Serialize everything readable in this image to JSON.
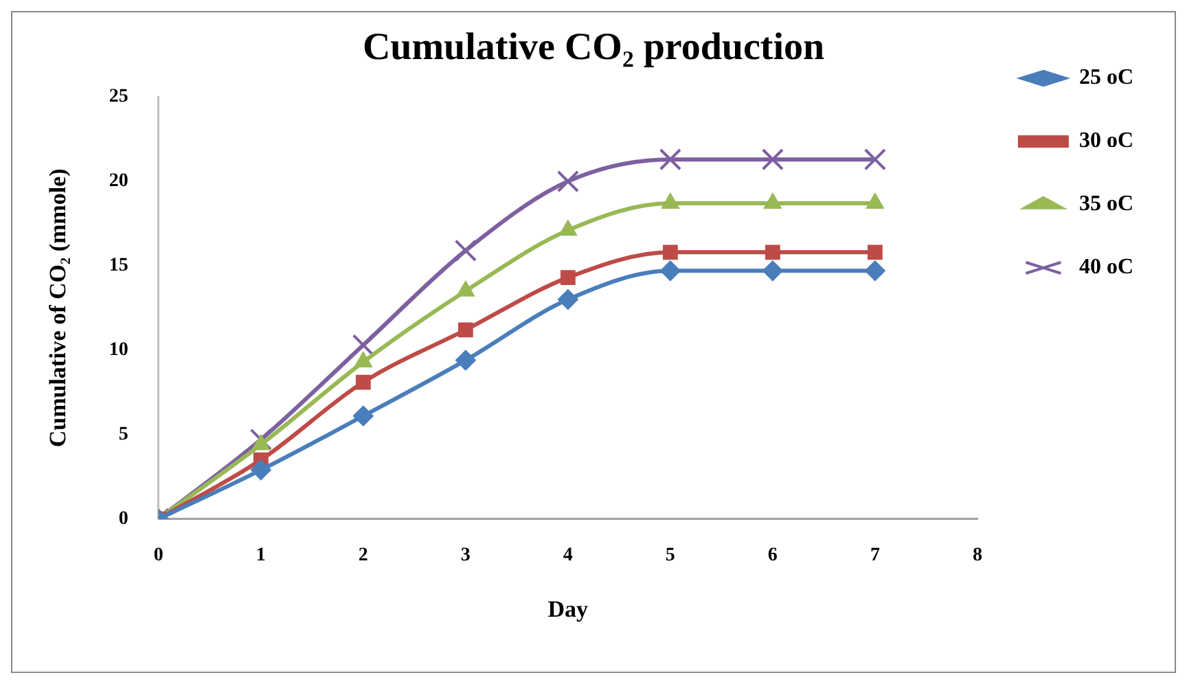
{
  "chart_data": {
    "type": "line",
    "title": "Cumulative CO₂ production",
    "xlabel": "Day",
    "ylabel": "Cumulative of CO₂ (mmole)",
    "x": [
      0,
      1,
      2,
      3,
      4,
      5,
      6,
      7
    ],
    "series": [
      {
        "name": "25 oC",
        "color": "#4a7ebb",
        "marker": "diamond",
        "values": [
          0,
          2.9,
          6.1,
          9.4,
          13.0,
          14.7,
          14.7,
          14.7
        ]
      },
      {
        "name": "30 oC",
        "color": "#be4b48",
        "marker": "square",
        "values": [
          0,
          3.5,
          8.1,
          11.2,
          14.3,
          15.8,
          15.8,
          15.8
        ]
      },
      {
        "name": "35 oC",
        "color": "#98b954",
        "marker": "triangle",
        "values": [
          0,
          4.4,
          9.3,
          13.5,
          17.1,
          18.7,
          18.7,
          18.7
        ]
      },
      {
        "name": "40 oC",
        "color": "#7d60a0",
        "marker": "cross",
        "values": [
          0,
          4.7,
          10.3,
          15.9,
          20.0,
          21.3,
          21.3,
          21.3
        ]
      }
    ],
    "xlim": [
      0,
      8
    ],
    "xticks": [
      0,
      1,
      2,
      3,
      4,
      5,
      6,
      7,
      8
    ],
    "ylim": [
      0,
      25
    ],
    "yticks": [
      0,
      5,
      10,
      15,
      20,
      25
    ],
    "grid": false,
    "legend": "right",
    "line_style": "solid"
  }
}
